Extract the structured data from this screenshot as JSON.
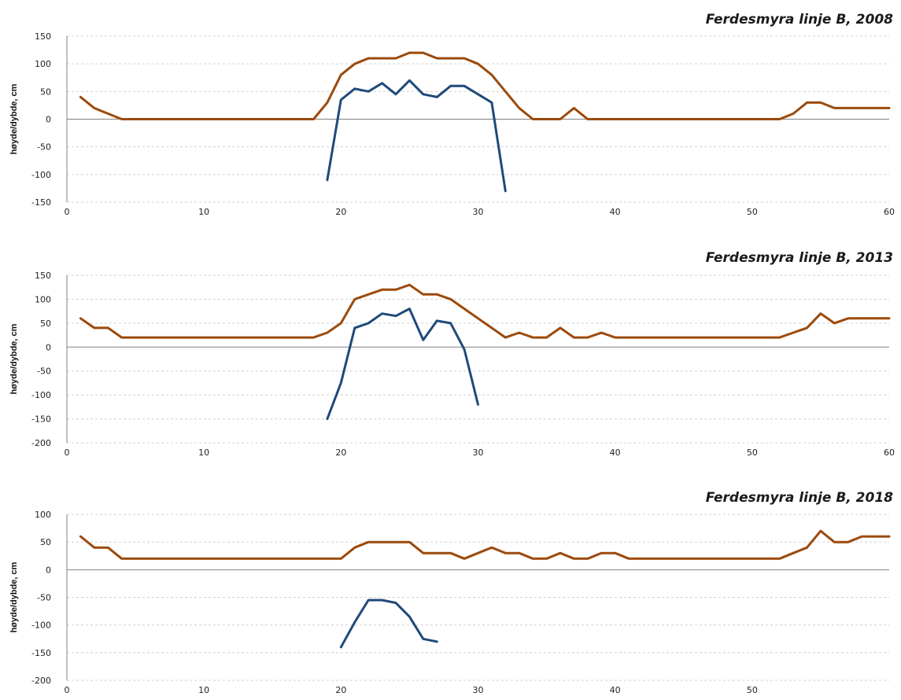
{
  "colors": {
    "terrain_line": "#9c4a0c",
    "depth_line": "#1f4a7a",
    "grid": "#d0d0d0",
    "zero_line": "#808080",
    "axis": "#808080"
  },
  "chart_data": [
    {
      "type": "line",
      "title": "Ferdesmyra linje B, 2008",
      "xlabel": "",
      "ylabel": "høyde/dybde, cm",
      "xlim": [
        0,
        60
      ],
      "ylim": [
        -150,
        150
      ],
      "xticks": [
        0,
        10,
        20,
        30,
        40,
        50,
        60
      ],
      "yticks": [
        150,
        100,
        50,
        0,
        -50,
        -100,
        -150
      ],
      "grid": true,
      "series": [
        {
          "color": "#9c4a0c",
          "x": [
            1,
            2,
            3,
            4,
            5,
            6,
            7,
            8,
            9,
            10,
            11,
            12,
            13,
            14,
            15,
            16,
            17,
            18,
            19,
            20,
            21,
            22,
            23,
            24,
            25,
            26,
            27,
            28,
            29,
            30,
            31,
            32,
            33,
            34,
            35,
            36,
            37,
            38,
            39,
            40,
            41,
            42,
            43,
            44,
            45,
            46,
            47,
            48,
            49,
            50,
            51,
            52,
            53,
            54,
            55,
            56,
            57,
            58,
            59,
            60
          ],
          "y": [
            40,
            20,
            10,
            0,
            0,
            0,
            0,
            0,
            0,
            0,
            0,
            0,
            0,
            0,
            0,
            0,
            0,
            0,
            30,
            80,
            100,
            110,
            110,
            110,
            120,
            120,
            110,
            110,
            110,
            100,
            80,
            50,
            20,
            0,
            0,
            0,
            20,
            0,
            0,
            0,
            0,
            0,
            0,
            0,
            0,
            0,
            0,
            0,
            0,
            0,
            0,
            0,
            10,
            30,
            30,
            20,
            20,
            20,
            20,
            20
          ]
        },
        {
          "color": "#1f4a7a",
          "x": [
            19,
            20,
            21,
            22,
            23,
            24,
            25,
            26,
            27,
            28,
            29,
            30,
            31,
            32
          ],
          "y": [
            -110,
            35,
            55,
            50,
            65,
            45,
            70,
            45,
            40,
            60,
            60,
            45,
            30,
            -130
          ]
        }
      ]
    },
    {
      "type": "line",
      "title": "Ferdesmyra linje B, 2013",
      "xlabel": "",
      "ylabel": "høyde/dybde, cm",
      "xlim": [
        0,
        60
      ],
      "ylim": [
        -200,
        150
      ],
      "xticks": [
        0,
        10,
        20,
        30,
        40,
        50,
        60
      ],
      "yticks": [
        150,
        100,
        50,
        0,
        -50,
        -100,
        -150,
        -200
      ],
      "grid": true,
      "series": [
        {
          "color": "#9c4a0c",
          "x": [
            1,
            2,
            3,
            4,
            5,
            6,
            7,
            8,
            9,
            10,
            11,
            12,
            13,
            14,
            15,
            16,
            17,
            18,
            19,
            20,
            21,
            22,
            23,
            24,
            25,
            26,
            27,
            28,
            29,
            30,
            31,
            32,
            33,
            34,
            35,
            36,
            37,
            38,
            39,
            40,
            41,
            42,
            43,
            44,
            45,
            46,
            47,
            48,
            49,
            50,
            51,
            52,
            53,
            54,
            55,
            56,
            57,
            58,
            59,
            60
          ],
          "y": [
            60,
            40,
            40,
            20,
            20,
            20,
            20,
            20,
            20,
            20,
            20,
            20,
            20,
            20,
            20,
            20,
            20,
            20,
            30,
            50,
            100,
            110,
            120,
            120,
            130,
            110,
            110,
            100,
            80,
            60,
            40,
            20,
            30,
            20,
            20,
            40,
            20,
            20,
            30,
            20,
            20,
            20,
            20,
            20,
            20,
            20,
            20,
            20,
            20,
            20,
            20,
            20,
            30,
            40,
            70,
            50,
            60,
            60,
            60,
            60
          ]
        },
        {
          "color": "#1f4a7a",
          "x": [
            19,
            20,
            21,
            22,
            23,
            24,
            25,
            26,
            27,
            28,
            29,
            30
          ],
          "y": [
            -150,
            -75,
            40,
            50,
            70,
            65,
            80,
            15,
            55,
            50,
            -5,
            -120
          ]
        }
      ]
    },
    {
      "type": "line",
      "title": "Ferdesmyra linje B, 2018",
      "xlabel": "",
      "ylabel": "høyde/dybde, cm",
      "xlim": [
        0,
        60
      ],
      "ylim": [
        -200,
        100
      ],
      "xticks": [
        0,
        10,
        20,
        30,
        40,
        50
      ],
      "yticks": [
        100,
        50,
        0,
        -50,
        -100,
        -150,
        -200
      ],
      "grid": true,
      "series": [
        {
          "color": "#9c4a0c",
          "x": [
            1,
            2,
            3,
            4,
            5,
            6,
            7,
            8,
            9,
            10,
            11,
            12,
            13,
            14,
            15,
            16,
            17,
            18,
            19,
            20,
            21,
            22,
            23,
            24,
            25,
            26,
            27,
            28,
            29,
            30,
            31,
            32,
            33,
            34,
            35,
            36,
            37,
            38,
            39,
            40,
            41,
            42,
            43,
            44,
            45,
            46,
            47,
            48,
            49,
            50,
            51,
            52,
            53,
            54,
            55,
            56,
            57,
            58,
            59,
            60
          ],
          "y": [
            60,
            40,
            40,
            20,
            20,
            20,
            20,
            20,
            20,
            20,
            20,
            20,
            20,
            20,
            20,
            20,
            20,
            20,
            20,
            20,
            40,
            50,
            50,
            50,
            50,
            30,
            30,
            30,
            20,
            30,
            40,
            30,
            30,
            20,
            20,
            30,
            20,
            20,
            30,
            30,
            20,
            20,
            20,
            20,
            20,
            20,
            20,
            20,
            20,
            20,
            20,
            20,
            30,
            40,
            70,
            50,
            50,
            60,
            60,
            60
          ]
        },
        {
          "color": "#1f4a7a",
          "x": [
            20,
            21,
            22,
            23,
            24,
            25,
            26,
            27
          ],
          "y": [
            -140,
            -95,
            -55,
            -55,
            -60,
            -85,
            -125,
            -130
          ]
        }
      ]
    }
  ]
}
